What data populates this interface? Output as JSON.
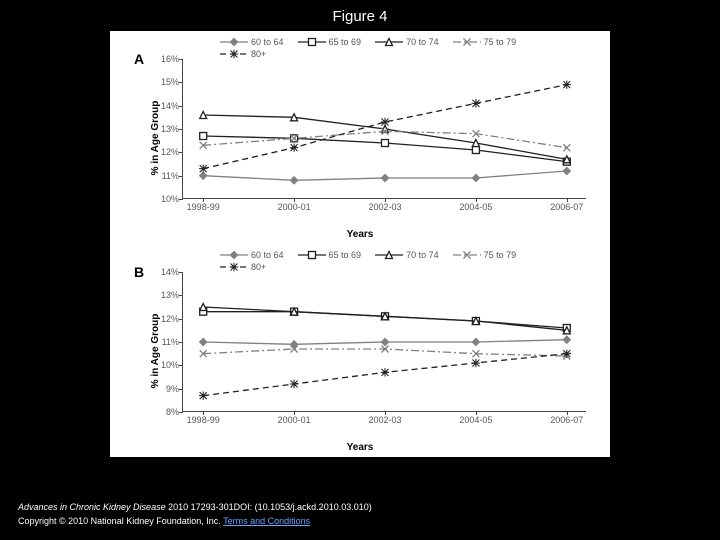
{
  "title": "Figure 4",
  "citation_journal": "Advances in Chronic Kidney Disease",
  "citation_rest": " 2010 17293-301DOI: (10.1053/j.ackd.2010.03.010)",
  "copyright_prefix": "Copyright © 2010 National Kidney Foundation, Inc. ",
  "copyright_link": "Terms and Conditions",
  "panels": {
    "A": {
      "label": "A",
      "ylabel": "% in Age Group",
      "xlabel": "Years",
      "ylim": [
        10,
        16
      ],
      "ytick_step": 1,
      "x_categories": [
        "1998-99",
        "2000-01",
        "2002-03",
        "2004-05",
        "2006-07"
      ],
      "series": [
        {
          "name": "60 to 64",
          "marker": "diamond",
          "line": "solid",
          "color": "#808080",
          "values": [
            11.0,
            10.8,
            10.9,
            10.9,
            11.2
          ]
        },
        {
          "name": "65 to 69",
          "marker": "square",
          "line": "solid",
          "color": "#202020",
          "values": [
            12.7,
            12.6,
            12.4,
            12.1,
            11.6
          ]
        },
        {
          "name": "70 to 74",
          "marker": "triangle",
          "line": "solid",
          "color": "#202020",
          "values": [
            13.6,
            13.5,
            13.0,
            12.4,
            11.7
          ]
        },
        {
          "name": "75 to 79",
          "marker": "x",
          "line": "dashdot",
          "color": "#808080",
          "values": [
            12.3,
            12.6,
            12.9,
            12.8,
            12.2
          ]
        },
        {
          "name": "80+",
          "marker": "star",
          "line": "dash",
          "color": "#202020",
          "values": [
            11.3,
            12.2,
            13.3,
            14.1,
            14.9
          ]
        }
      ]
    },
    "B": {
      "label": "B",
      "ylabel": "% in Age Group",
      "xlabel": "Years",
      "ylim": [
        8,
        14
      ],
      "ytick_step": 1,
      "x_categories": [
        "1998-99",
        "2000-01",
        "2002-03",
        "2004-05",
        "2006-07"
      ],
      "series": [
        {
          "name": "60 to 64",
          "marker": "diamond",
          "line": "solid",
          "color": "#808080",
          "values": [
            11.0,
            10.9,
            11.0,
            11.0,
            11.1
          ]
        },
        {
          "name": "65 to 69",
          "marker": "square",
          "line": "solid",
          "color": "#202020",
          "values": [
            12.3,
            12.3,
            12.1,
            11.9,
            11.6
          ]
        },
        {
          "name": "70 to 74",
          "marker": "triangle",
          "line": "solid",
          "color": "#202020",
          "values": [
            12.5,
            12.3,
            12.1,
            11.9,
            11.5
          ]
        },
        {
          "name": "75 to 79",
          "marker": "x",
          "line": "dashdot",
          "color": "#808080",
          "values": [
            10.5,
            10.7,
            10.7,
            10.5,
            10.4
          ]
        },
        {
          "name": "80+",
          "marker": "star",
          "line": "dash",
          "color": "#202020",
          "values": [
            8.7,
            9.2,
            9.7,
            10.1,
            10.5
          ]
        }
      ]
    }
  },
  "styling": {
    "background_color": "#000000",
    "figure_bg": "#ffffff",
    "axis_color": "#444444",
    "tick_fontsize": 9,
    "label_fontsize": 10,
    "title_fontsize": 15,
    "line_width": 1.3,
    "marker_size": 5
  }
}
